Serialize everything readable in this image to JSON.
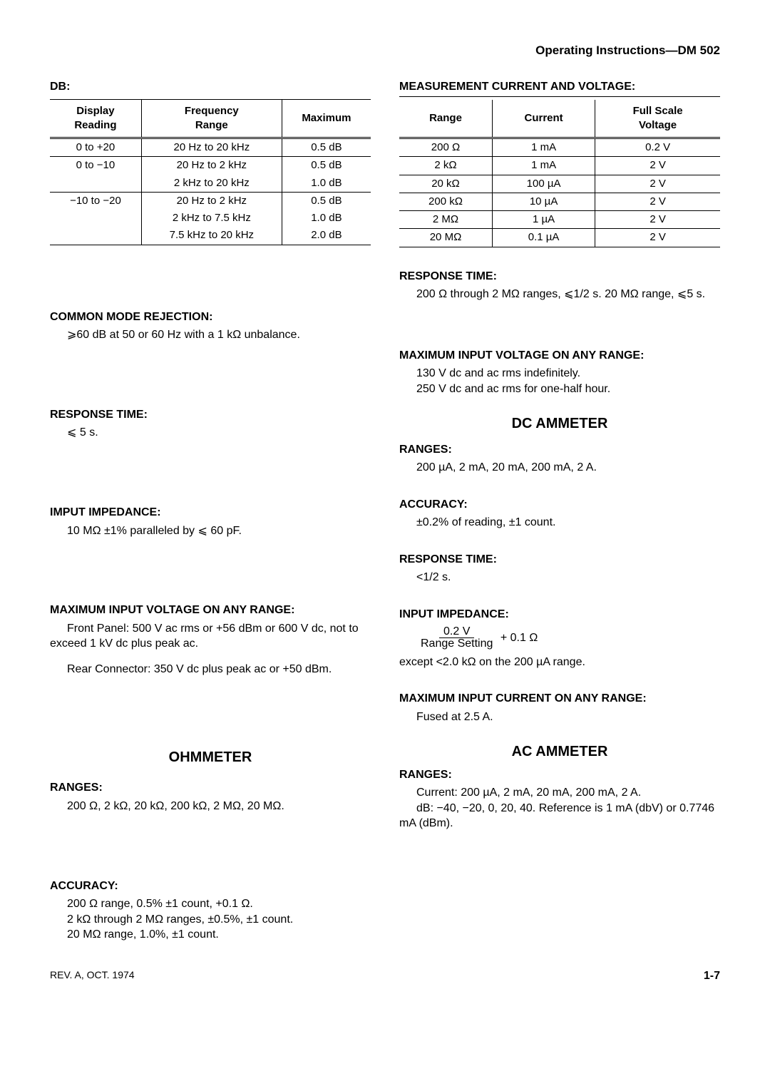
{
  "header": "Operating Instructions—DM 502",
  "left": {
    "db_label": "DB:",
    "db_table": {
      "headers": [
        "Display\nReading",
        "Frequency\nRange",
        "Maximum"
      ],
      "rows": [
        [
          {
            "t": "0 to +20",
            "u": true
          },
          {
            "t": "20 Hz to 20 kHz",
            "u": true
          },
          {
            "t": "0.5 dB",
            "u": true
          }
        ],
        [
          {
            "t": "0 to −10"
          },
          {
            "t": "20 Hz to 2 kHz"
          },
          {
            "t": "0.5 dB"
          }
        ],
        [
          {
            "t": "",
            "u": true
          },
          {
            "t": "2 kHz to 20 kHz",
            "u": true
          },
          {
            "t": "1.0 dB",
            "u": true
          }
        ],
        [
          {
            "t": "−10 to −20"
          },
          {
            "t": "20 Hz to 2 kHz"
          },
          {
            "t": "0.5 dB"
          }
        ],
        [
          {
            "t": ""
          },
          {
            "t": "2 kHz to 7.5 kHz"
          },
          {
            "t": "1.0 dB"
          }
        ],
        [
          {
            "t": "",
            "u": true,
            "last": true
          },
          {
            "t": "7.5 kHz to 20 kHz",
            "u": true,
            "last": true
          },
          {
            "t": "2.0 dB",
            "u": true,
            "last": true
          }
        ]
      ]
    },
    "cmr_label": "COMMON MODE REJECTION:",
    "cmr_body": "⩾60 dB at 50 or 60 Hz with a 1 kΩ unbalance.",
    "rt_label": "RESPONSE TIME:",
    "rt_body": "⩽ 5 s.",
    "imp_label": "IMPUT IMPEDANCE:",
    "imp_body": "10 MΩ ±1% paralleled by ⩽ 60 pF.",
    "miv_label": "MAXIMUM INPUT VOLTAGE ON ANY RANGE:",
    "miv_body1": "Front Panel: 500 V ac rms or +56 dBm or 600 V dc, not to exceed 1 kV dc plus peak ac.",
    "miv_body2": "Rear Connector: 350 V dc plus peak ac or +50 dBm.",
    "ohm_title": "OHMMETER",
    "ohm_ranges_label": "RANGES:",
    "ohm_ranges_body": "200 Ω, 2 kΩ, 20 kΩ, 200 kΩ, 2 MΩ, 20 MΩ.",
    "ohm_acc_label": "ACCURACY:",
    "ohm_acc_body1": "200 Ω range, 0.5% ±1 count, +0.1 Ω.",
    "ohm_acc_body2": "2 kΩ through 2 MΩ ranges, ±0.5%, ±1 count.",
    "ohm_acc_body3": "20 MΩ range, 1.0%, ±1 count."
  },
  "right": {
    "mcv_label": "MEASUREMENT CURRENT AND VOLTAGE:",
    "mcv_table": {
      "headers": [
        "Range",
        "Current",
        "Full Scale\nVoltage"
      ],
      "rows": [
        [
          "200 Ω",
          "1 mA",
          "0.2 V"
        ],
        [
          "2 kΩ",
          "1 mA",
          "2 V"
        ],
        [
          "20 kΩ",
          "100 µA",
          "2 V"
        ],
        [
          "200 kΩ",
          "10 µA",
          "2 V"
        ],
        [
          "2 MΩ",
          "1 µA",
          "2 V"
        ],
        [
          "20 MΩ",
          "0.1 µA",
          "2 V"
        ]
      ]
    },
    "rt_label": "RESPONSE TIME:",
    "rt_body": "200 Ω through 2 MΩ ranges, ⩽1/2 s. 20 MΩ range, ⩽5 s.",
    "miv_label": "MAXIMUM INPUT VOLTAGE ON ANY RANGE:",
    "miv_body1": "130 V dc and ac rms indefinitely.",
    "miv_body2": "250 V dc and ac rms for one-half hour.",
    "dca_title": "DC AMMETER",
    "dca_ranges_label": "RANGES:",
    "dca_ranges_body": "200 µA, 2 mA, 20 mA, 200 mA, 2 A.",
    "dca_acc_label": "ACCURACY:",
    "dca_acc_body": "±0.2% of reading, ±1 count.",
    "dca_rt_label": "RESPONSE TIME:",
    "dca_rt_body": "<1/2 s.",
    "dca_imp_label": "INPUT IMPEDANCE:",
    "dca_imp_num": "0.2 V",
    "dca_imp_den": "Range Setting",
    "dca_imp_tail": "   +   0.1 Ω",
    "dca_imp_note": "except <2.0 kΩ on the 200 µA range.",
    "dca_mic_label": "MAXIMUM INPUT CURRENT ON ANY RANGE:",
    "dca_mic_body": "Fused at 2.5 A.",
    "aca_title": "AC AMMETER",
    "aca_ranges_label": "RANGES:",
    "aca_ranges_body1": "Current: 200 µA, 2 mA, 20 mA, 200 mA, 2 A.",
    "aca_ranges_body2": "dB: −40, −20, 0, 20, 40. Reference is 1 mA (dbV) or 0.7746 mA (dBm)."
  },
  "footer": {
    "left": "REV. A, OCT. 1974",
    "right": "1-7"
  },
  "style": {
    "text_color": "#000000",
    "background": "#ffffff",
    "body_fontsize": 16,
    "header_fontsize": 17,
    "section_title_fontsize": 20,
    "table_fontsize": 15,
    "border_color": "#000000"
  }
}
